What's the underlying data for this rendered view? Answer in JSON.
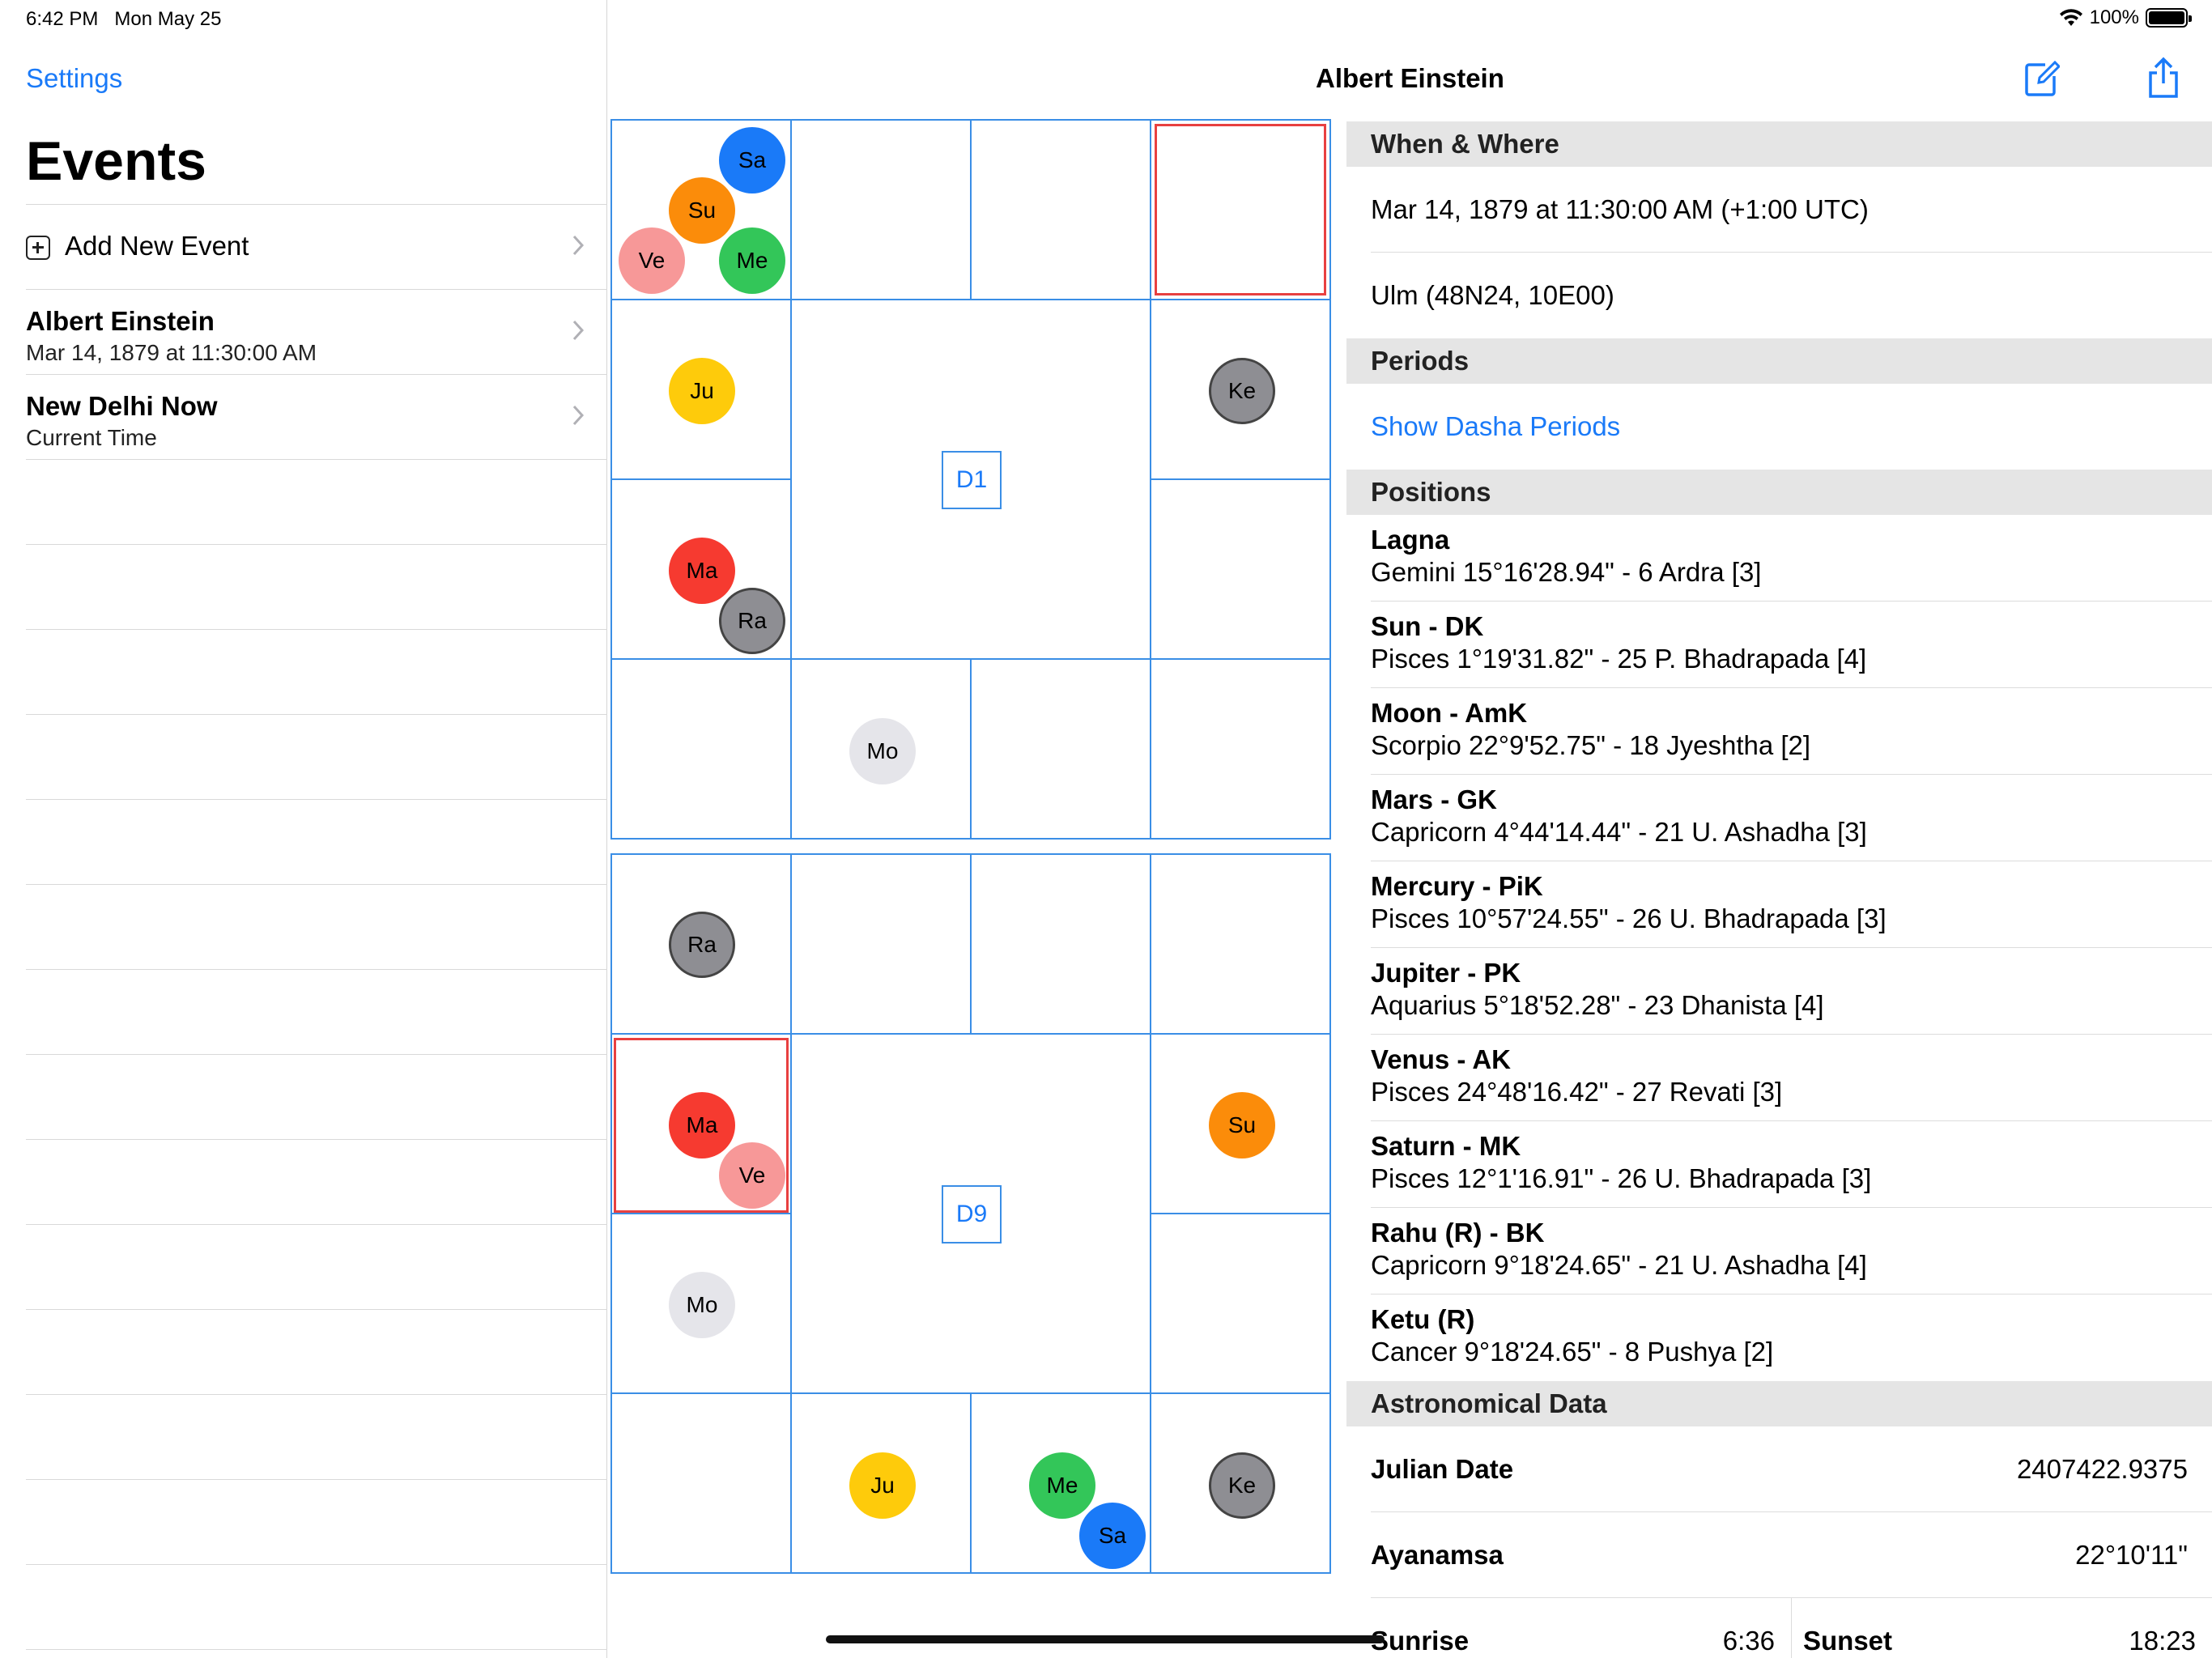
{
  "status": {
    "time": "6:42 PM",
    "date": "Mon May 25",
    "battery": "100%",
    "battery_level": 1.0
  },
  "sidebar": {
    "back_label": "Settings",
    "title": "Events",
    "add_label": "Add New Event",
    "items": [
      {
        "title": "Albert Einstein",
        "subtitle": "Mar 14, 1879 at 11:30:00 AM"
      },
      {
        "title": "New Delhi Now",
        "subtitle": "Current Time"
      }
    ]
  },
  "header": {
    "title": "Albert Einstein",
    "edit_icon": "compose-icon",
    "share_icon": "share-icon"
  },
  "colors": {
    "Sa": "#1a7af8",
    "Su": "#fb8c0a",
    "Ve": "#f79898",
    "Me": "#33c659",
    "Ju": "#fecb0b",
    "Ke": "#8e8e93",
    "Ma": "#f63a30",
    "Ra": "#8e8e93",
    "Mo": "#e5e5ea",
    "accent": "#1a7af8",
    "grid": "#3a8ee6",
    "selection": "#e84040"
  },
  "charts": {
    "d1": {
      "label": "D1",
      "planets": {
        "Sa": "Sa",
        "Su": "Su",
        "Ve": "Ve",
        "Me": "Me",
        "Ju": "Ju",
        "Ke": "Ke",
        "Ma": "Ma",
        "Ra": "Ra",
        "Mo": "Mo"
      }
    },
    "d9": {
      "label": "D9",
      "planets": {
        "Ra": "Ra",
        "Ma": "Ma",
        "Ve": "Ve",
        "Su": "Su",
        "Mo": "Mo",
        "Ju": "Ju",
        "Me": "Me",
        "Sa": "Sa",
        "Ke": "Ke"
      }
    }
  },
  "details": {
    "when_where": {
      "header": "When & Where",
      "datetime": "Mar 14, 1879 at 11:30:00 AM (+1:00 UTC)",
      "place": "Ulm (48N24, 10E00)"
    },
    "periods": {
      "header": "Periods",
      "link": "Show Dasha Periods"
    },
    "positions": {
      "header": "Positions",
      "items": [
        {
          "name": "Lagna",
          "value": "Gemini 15°16'28.94\" - 6 Ardra [3]"
        },
        {
          "name": "Sun - DK",
          "value": "Pisces 1°19'31.82\" - 25 P. Bhadrapada [4]"
        },
        {
          "name": "Moon - AmK",
          "value": "Scorpio 22°9'52.75\" - 18 Jyeshtha [2]"
        },
        {
          "name": "Mars - GK",
          "value": "Capricorn 4°44'14.44\" - 21 U. Ashadha [3]"
        },
        {
          "name": "Mercury - PiK",
          "value": "Pisces 10°57'24.55\" - 26 U. Bhadrapada [3]"
        },
        {
          "name": "Jupiter - PK",
          "value": "Aquarius 5°18'52.28\" - 23 Dhanista [4]"
        },
        {
          "name": "Venus - AK",
          "value": "Pisces 24°48'16.42\" - 27 Revati [3]"
        },
        {
          "name": "Saturn - MK",
          "value": "Pisces 12°1'16.91\" - 26 U. Bhadrapada [3]"
        },
        {
          "name": "Rahu (R) - BK",
          "value": "Capricorn 9°18'24.65\" - 21 U. Ashadha [4]"
        },
        {
          "name": "Ketu (R)",
          "value": "Cancer 9°18'24.65\" - 8 Pushya [2]"
        }
      ]
    },
    "astro": {
      "header": "Astronomical Data",
      "julian_label": "Julian Date",
      "julian_value": "2407422.9375",
      "ayanamsa_label": "Ayanamsa",
      "ayanamsa_value": "22°10'11\"",
      "sunrise_label": "Sunrise",
      "sunrise_value": "6:36",
      "sunset_label": "Sunset",
      "sunset_value": "18:23"
    }
  }
}
